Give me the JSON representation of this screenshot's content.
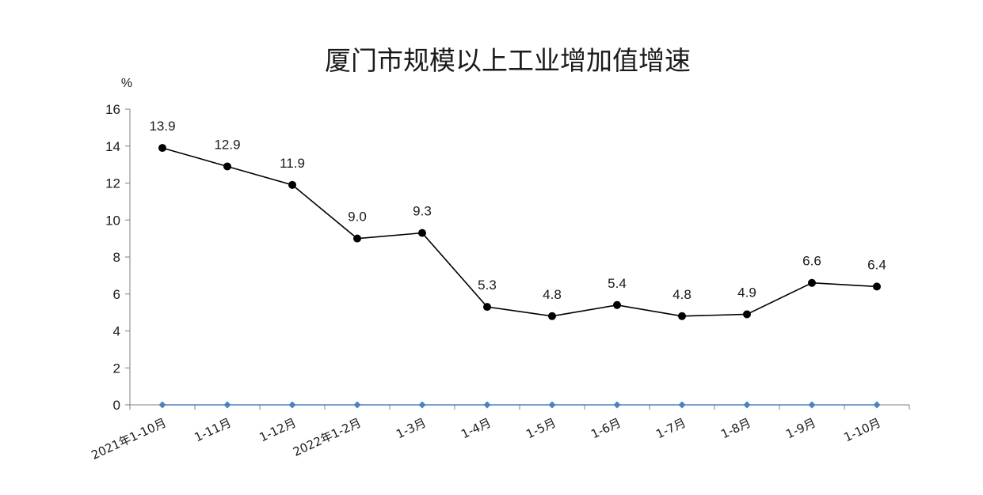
{
  "chart_data": {
    "type": "line",
    "title": "厦门市规模以上工业增加值增速",
    "ylabel": "%",
    "xlabel": "",
    "ylim": [
      0,
      16
    ],
    "yticks": [
      0,
      2,
      4,
      6,
      8,
      10,
      12,
      14,
      16
    ],
    "grid": false,
    "legend": "none",
    "categories": [
      "2021年1-10月",
      "1-11月",
      "1-12月",
      "2022年1-2月",
      "1-3月",
      "1-4月",
      "1-5月",
      "1-6月",
      "1-7月",
      "1-8月",
      "1-9月",
      "1-10月"
    ],
    "series": [
      {
        "values": [
          13.9,
          12.9,
          11.9,
          9.0,
          9.3,
          5.3,
          4.8,
          5.4,
          4.8,
          4.9,
          6.6,
          6.4
        ],
        "labels": [
          "13.9",
          "12.9",
          "11.9",
          "9.0",
          "9.3",
          "5.3",
          "4.8",
          "5.4",
          "4.8",
          "4.9",
          "6.6",
          "6.4"
        ],
        "color": "#000000",
        "marker": "circle"
      },
      {
        "values": [
          0,
          0,
          0,
          0,
          0,
          0,
          0,
          0,
          0,
          0,
          0,
          0
        ],
        "color": "#4f81bd",
        "marker": "diamond"
      }
    ]
  }
}
